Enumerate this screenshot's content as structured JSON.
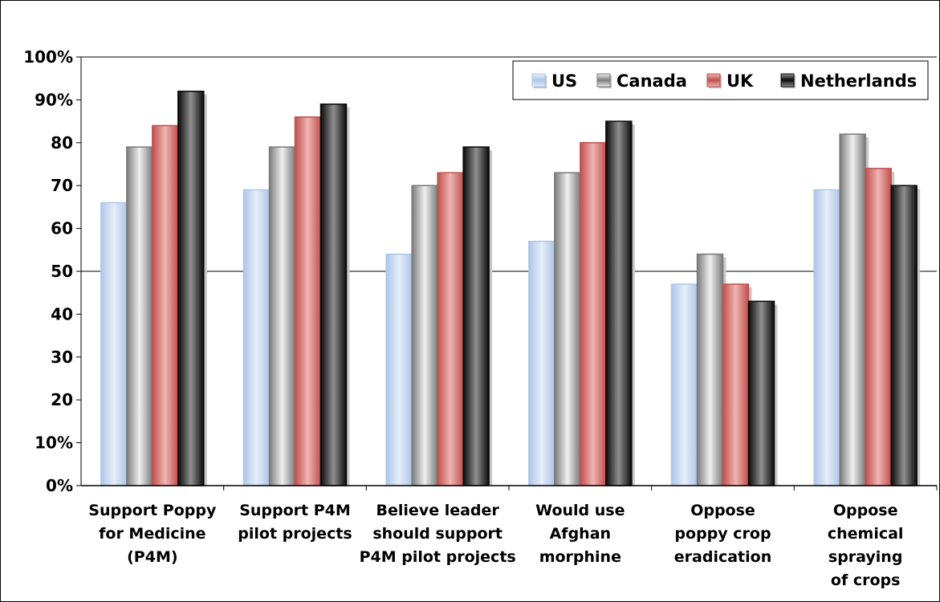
{
  "chart_data": {
    "type": "bar",
    "title": "",
    "xlabel": "",
    "ylabel": "",
    "ylim": [
      0,
      100
    ],
    "grid": true,
    "legend_position": "top-right",
    "y_tick_labels": [
      "0%",
      "10%",
      "20",
      "30",
      "40",
      "50",
      "60",
      "70",
      "80",
      "90%",
      "100%"
    ],
    "categories": [
      [
        "Support Poppy",
        "for Medicine",
        "(P4M)"
      ],
      [
        "Support P4M",
        "pilot projects"
      ],
      [
        "Believe leader",
        "should support",
        "P4M pilot projects"
      ],
      [
        "Would use",
        "Afghan",
        "morphine"
      ],
      [
        "Oppose",
        "poppy crop",
        "eradication"
      ],
      [
        "Oppose",
        "chemical",
        "spraying",
        "of crops"
      ]
    ],
    "series": [
      {
        "name": "US",
        "values": [
          66,
          69,
          54,
          57,
          47,
          69
        ]
      },
      {
        "name": "Canada",
        "values": [
          79,
          79,
          70,
          73,
          54,
          82
        ]
      },
      {
        "name": "UK",
        "values": [
          84,
          86,
          73,
          80,
          47,
          74
        ]
      },
      {
        "name": "Netherlands",
        "values": [
          92,
          89,
          79,
          85,
          43,
          70
        ]
      }
    ],
    "colors": {
      "US": [
        "#aec6e8",
        "#e6eef9"
      ],
      "Canada": [
        "#7a7a7a",
        "#f0f0f0"
      ],
      "UK": [
        "#c0504d",
        "#efb5b3"
      ],
      "Netherlands": [
        "#0a0a0a",
        "#909090"
      ]
    }
  }
}
